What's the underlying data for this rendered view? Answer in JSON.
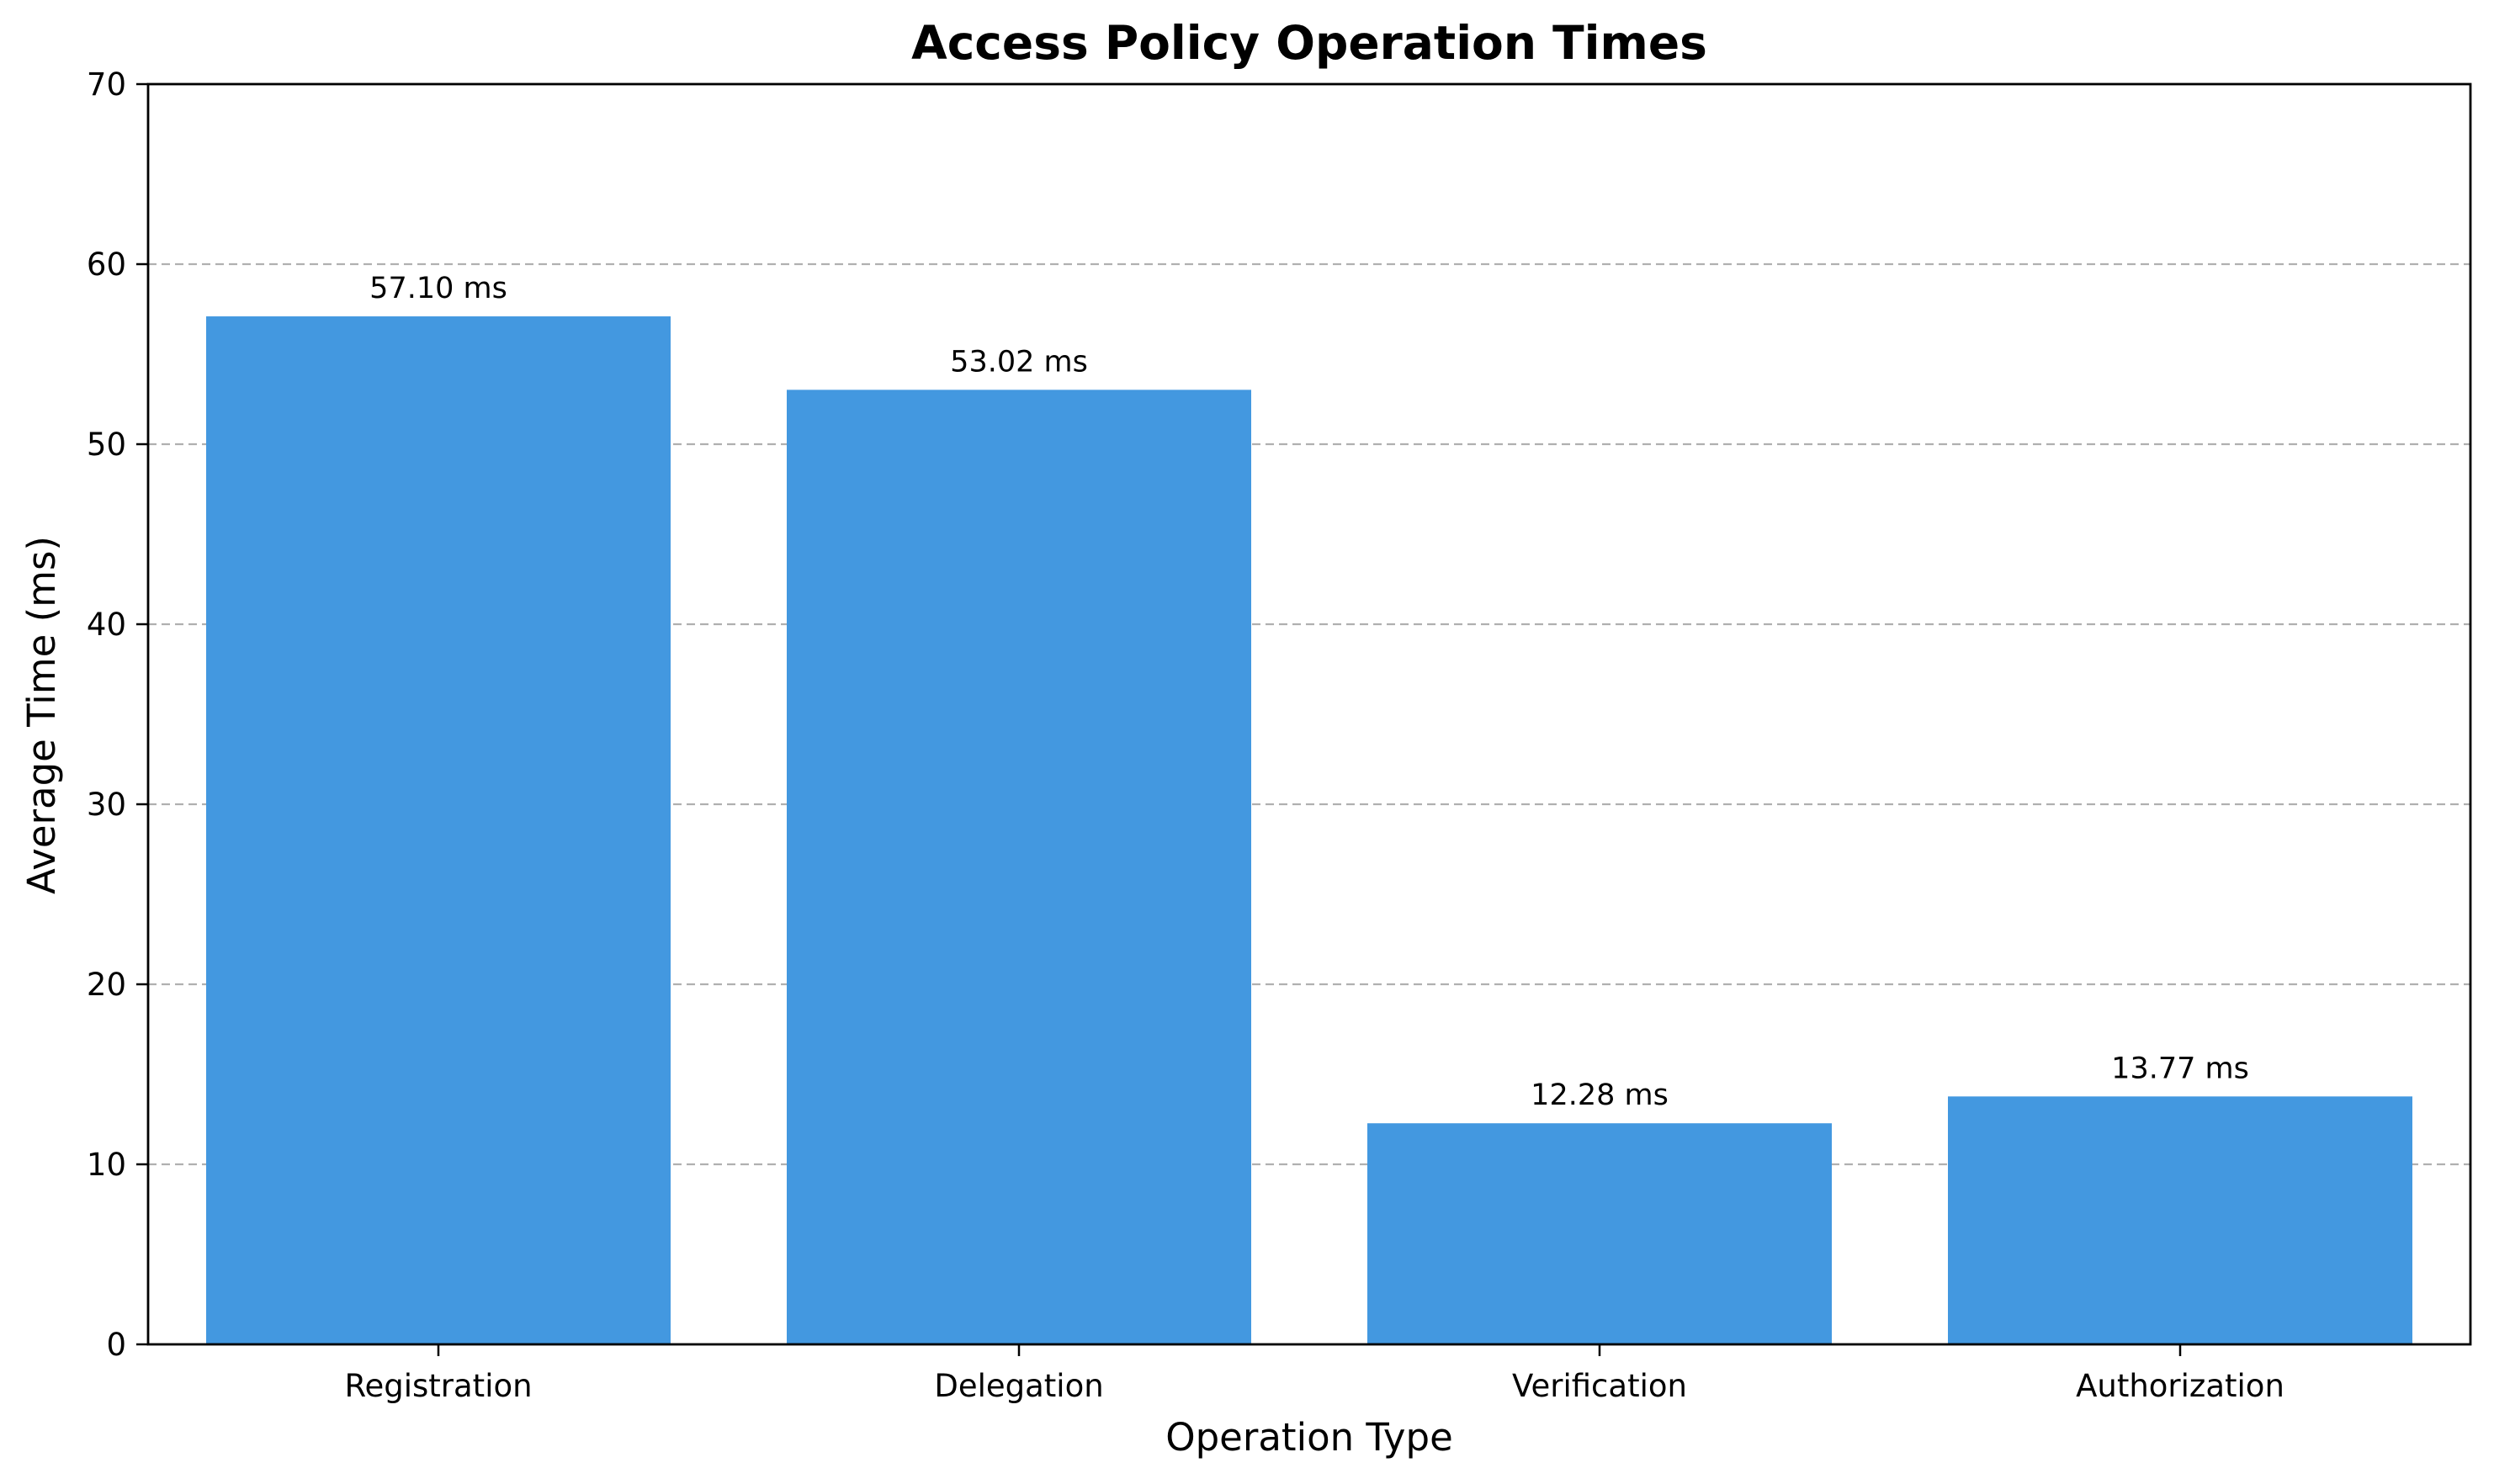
{
  "chart_data": {
    "type": "bar",
    "title": "Access Policy Operation Times",
    "xlabel": "Operation Type",
    "ylabel": "Average Time (ms)",
    "categories": [
      "Registration",
      "Delegation",
      "Verification",
      "Authorization"
    ],
    "values": [
      57.1,
      53.02,
      12.28,
      13.77
    ],
    "data_labels": [
      "57.10 ms",
      "53.02 ms",
      "12.28 ms",
      "13.77 ms"
    ],
    "ylim": [
      0,
      70
    ],
    "yticks": [
      0,
      10,
      20,
      30,
      40,
      50,
      60,
      70
    ],
    "grid": "y-dashed",
    "legend": "none",
    "colors": {
      "bar": "#4398e0",
      "grid": "#b0b0b0"
    }
  }
}
